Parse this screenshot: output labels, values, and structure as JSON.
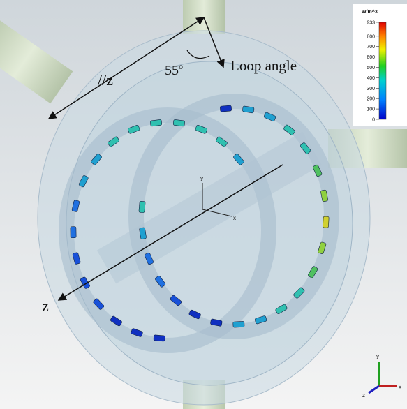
{
  "annotations": {
    "parallel_z": "//z",
    "angle": "55",
    "angle_unit": "o",
    "loop_angle": "Loop angle",
    "z_axis": "z"
  },
  "colorbar": {
    "unit": "W/m^3",
    "ticks": [
      933,
      800,
      700,
      600,
      500,
      400,
      300,
      200,
      100,
      0
    ]
  },
  "axes": {
    "y": "y",
    "x": "x"
  },
  "triad": {
    "y": "y",
    "x": "x",
    "z": "z"
  }
}
